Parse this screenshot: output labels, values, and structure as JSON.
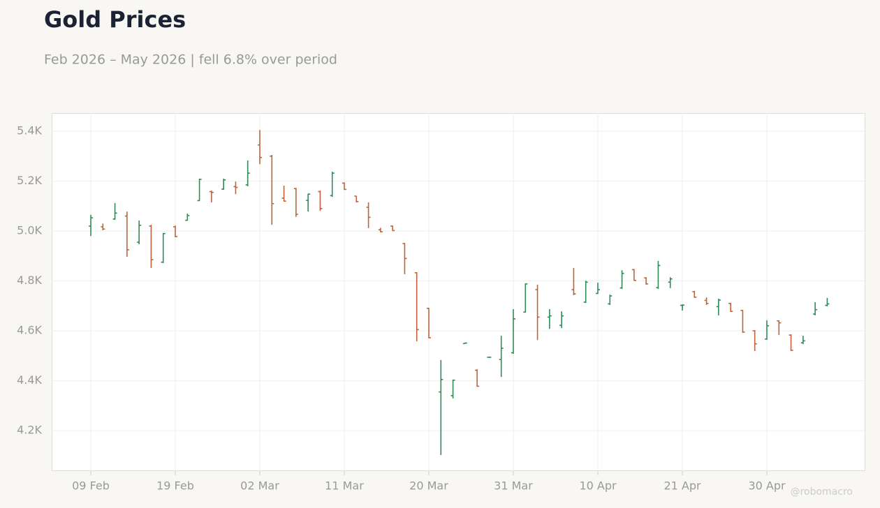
{
  "chart_data": {
    "type": "ohlc",
    "title": "Gold Prices",
    "subtitle": "Feb 2026 – May 2026 | fell 6.8% over period",
    "watermark": "@robomacro",
    "categories": [
      "09 Feb",
      null,
      null,
      null,
      null,
      null,
      null,
      "19 Feb",
      null,
      null,
      null,
      null,
      null,
      null,
      "02 Mar",
      null,
      null,
      null,
      null,
      null,
      null,
      "11 Mar",
      null,
      null,
      null,
      null,
      null,
      null,
      "20 Mar",
      null,
      null,
      null,
      null,
      null,
      null,
      "31 Mar",
      null,
      null,
      null,
      null,
      null,
      null,
      "10 Apr",
      null,
      null,
      null,
      null,
      null,
      null,
      "21 Apr",
      null,
      null,
      null,
      null,
      null,
      null,
      "30 Apr",
      null,
      null,
      null,
      null,
      null
    ],
    "open": [
      5020,
      5017,
      5048,
      5060,
      4955,
      5020,
      4875,
      5017,
      5043,
      5122,
      5158,
      5168,
      5178,
      5185,
      5345,
      5300,
      5132,
      5170,
      5123,
      5158,
      5142,
      5192,
      5140,
      5095,
      5005,
      5020,
      4950,
      4833,
      4690,
      4355,
      4340,
      4549,
      4442,
      4494,
      4485,
      4512,
      4675,
      4765,
      4655,
      4622,
      4765,
      4715,
      4750,
      4708,
      4772,
      4845,
      4812,
      4773,
      4795,
      4702,
      4757,
      4722,
      4697,
      4710,
      4682,
      4600,
      4567,
      4640,
      4583,
      4552,
      4667,
      4702
    ],
    "high": [
      5065,
      5030,
      5112,
      5078,
      5042,
      5025,
      4992,
      5022,
      5070,
      5210,
      5162,
      5210,
      5198,
      5283,
      5405,
      5305,
      5182,
      5173,
      5150,
      5162,
      5238,
      5195,
      5140,
      5115,
      5013,
      5022,
      4952,
      4835,
      4692,
      4483,
      4404,
      4553,
      4446,
      4496,
      4580,
      4687,
      4790,
      4785,
      4687,
      4678,
      4852,
      4801,
      4793,
      4745,
      4843,
      4848,
      4815,
      4880,
      4815,
      4706,
      4760,
      4734,
      4729,
      4712,
      4684,
      4603,
      4642,
      4642,
      4586,
      4580,
      4715,
      4732
    ],
    "low": [
      4980,
      5003,
      5045,
      4897,
      4947,
      4852,
      4872,
      4975,
      5042,
      5120,
      5115,
      5165,
      5148,
      5180,
      5268,
      5025,
      5118,
      5057,
      5078,
      5081,
      5137,
      5165,
      5115,
      5012,
      4995,
      5000,
      4827,
      4558,
      4570,
      4102,
      4329,
      4548,
      4376,
      4492,
      4415,
      4508,
      4673,
      4563,
      4608,
      4611,
      4743,
      4712,
      4748,
      4704,
      4768,
      4801,
      4785,
      4768,
      4771,
      4681,
      4732,
      4704,
      4662,
      4676,
      4592,
      4519,
      4564,
      4583,
      4519,
      4547,
      4662,
      4698
    ],
    "close": [
      5053,
      5008,
      5072,
      4925,
      5023,
      4885,
      4990,
      4978,
      5062,
      5207,
      5155,
      5205,
      5175,
      5232,
      5295,
      5110,
      5120,
      5067,
      5148,
      5090,
      5232,
      5167,
      5118,
      5055,
      4997,
      5002,
      4890,
      4605,
      4572,
      4405,
      4402,
      4551,
      4378,
      4494,
      4530,
      4648,
      4788,
      4655,
      4660,
      4660,
      4748,
      4795,
      4765,
      4740,
      4830,
      4802,
      4788,
      4862,
      4808,
      4703,
      4735,
      4710,
      4723,
      4678,
      4595,
      4548,
      4620,
      4632,
      4522,
      4560,
      4685,
      4708
    ],
    "up_color": "#2e8b57",
    "down_color": "#c0623d",
    "ylim": [
      4038,
      5473
    ],
    "yticks": [
      {
        "value": 4200,
        "label": "4.2K"
      },
      {
        "value": 4400,
        "label": "4.4K"
      },
      {
        "value": 4600,
        "label": "4.6K"
      },
      {
        "value": 4800,
        "label": "4.8K"
      },
      {
        "value": 5000,
        "label": "5.0K"
      },
      {
        "value": 5200,
        "label": "5.2K"
      },
      {
        "value": 5400,
        "label": "5.4K"
      }
    ],
    "grid": true
  }
}
